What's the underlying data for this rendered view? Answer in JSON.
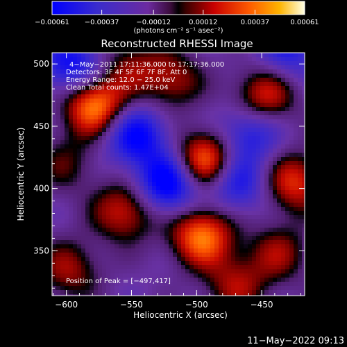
{
  "chart_data": {
    "type": "heatmap",
    "title": "Reconstructed RHESSI Image",
    "xlabel": "Heliocentric X (arcsec)",
    "ylabel": "Heliocentric Y (arcsec)",
    "xlim": [
      -611,
      -417
    ],
    "ylim": [
      314,
      509
    ],
    "x_ticks": [
      -600,
      -550,
      -500,
      -450
    ],
    "x_tick_labels": [
      "−600",
      "−550",
      "−500",
      "−450"
    ],
    "y_ticks": [
      350,
      400,
      450,
      500
    ],
    "y_tick_labels": [
      "350",
      "400",
      "450",
      "500"
    ],
    "colorbar": {
      "ticks": [
        -0.00061,
        -0.00037,
        -0.00012,
        0.00012,
        0.00037,
        0.00061
      ],
      "tick_labels": [
        "−0.00061",
        "−0.00037",
        "−0.00012",
        "0.00012",
        "0.00037",
        "0.00061"
      ],
      "units_label": "(photons cm⁻² s⁻¹ asec⁻²)",
      "min": -0.00061,
      "max": 0.00061
    },
    "annotations": [
      "4−May−2011 17:11:36.000 to 17:17:36.000",
      "Detectors: 3F 4F 5F 6F 7F 8F, Att 0",
      "Energy Range: 12.0 − 25.0 keV",
      "Clean     Total counts: 1.47E+04"
    ],
    "peak_label": "Position of Peak = [−497,417]",
    "peak_position": [
      -497,
      417
    ],
    "sources": [
      {
        "x": -578,
        "y": 467,
        "amp": 0.00061
      },
      {
        "x": -493,
        "y": 422,
        "amp": 0.0006
      },
      {
        "x": -496,
        "y": 362,
        "amp": 0.00056
      },
      {
        "x": -555,
        "y": 382,
        "amp": 0.0004
      },
      {
        "x": -448,
        "y": 474,
        "amp": 0.00042
      },
      {
        "x": -425,
        "y": 405,
        "amp": 0.00042
      },
      {
        "x": -520,
        "y": 487,
        "amp": 0.00032
      },
      {
        "x": -552,
        "y": 500,
        "amp": 0.00022
      },
      {
        "x": -598,
        "y": 335,
        "amp": 0.0003
      },
      {
        "x": -600,
        "y": 420,
        "amp": 0.0002
      },
      {
        "x": -437,
        "y": 348,
        "amp": 0.00028
      },
      {
        "x": -470,
        "y": 322,
        "amp": 0.0003
      },
      {
        "x": -522,
        "y": 404,
        "amp": -0.00055
      },
      {
        "x": -547,
        "y": 443,
        "amp": -0.00045
      },
      {
        "x": -595,
        "y": 498,
        "amp": -0.00042
      },
      {
        "x": -470,
        "y": 405,
        "amp": -0.00038
      },
      {
        "x": -460,
        "y": 445,
        "amp": -0.00035
      },
      {
        "x": -430,
        "y": 510,
        "amp": -0.0003
      }
    ]
  },
  "footer": {
    "timestamp": "11−May−2022 09:13"
  }
}
